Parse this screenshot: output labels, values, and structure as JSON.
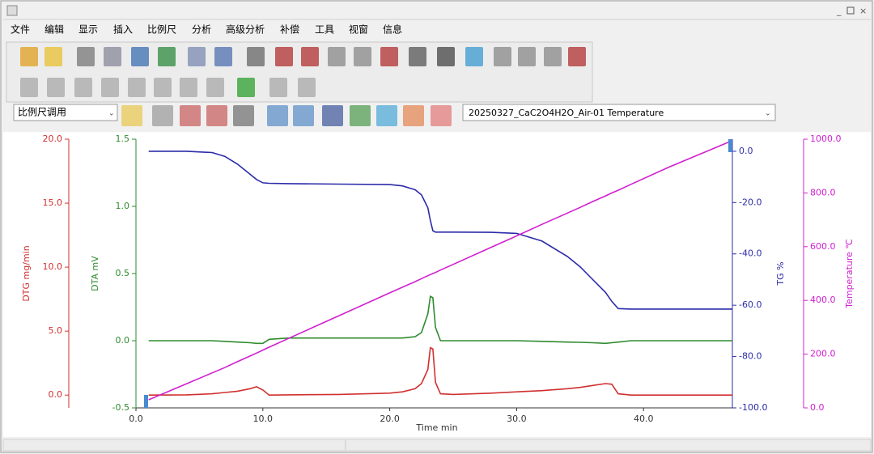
{
  "menu": [
    "文件",
    "编辑",
    "显示",
    "插入",
    "比例尺",
    "分析",
    "高级分析",
    "补偿",
    "工具",
    "视窗",
    "信息"
  ],
  "scale_combo": "比例尺调用",
  "dataset_combo": "20250327_CaC2O4H2O_Air-01   Temperature",
  "chart_data": {
    "type": "line",
    "xlabel": "Time  min",
    "xlim": [
      0,
      47
    ],
    "xticks": [
      {
        "value": 0,
        "label": "0.0"
      },
      {
        "value": 10,
        "label": "10.0"
      },
      {
        "value": 20,
        "label": "20.0"
      },
      {
        "value": 30,
        "label": "30.0"
      },
      {
        "value": 40,
        "label": "40.0"
      }
    ],
    "x": [
      1,
      4,
      6,
      7,
      8,
      9,
      9.5,
      10,
      10.5,
      12,
      16,
      20,
      21,
      22,
      22.5,
      23,
      23.2,
      23.4,
      23.6,
      24,
      25,
      28,
      30,
      32,
      34,
      35,
      36,
      37,
      37.5,
      38,
      39,
      42,
      47
    ],
    "y_axes": [
      {
        "label": "DTG  mg/min",
        "color": "#d03030",
        "ylim": [
          -1,
          20
        ],
        "yticks": [
          {
            "value": 0,
            "label": "0.0"
          },
          {
            "value": 5,
            "label": "5.0"
          },
          {
            "value": 10,
            "label": "10.0"
          },
          {
            "value": 15,
            "label": "15.0"
          },
          {
            "value": 20,
            "label": "20.0"
          }
        ]
      },
      {
        "label": "DTA  mV",
        "color": "#2e8b2e",
        "ylim": [
          -0.5,
          1.5
        ],
        "yticks": [
          {
            "value": -0.5,
            "label": "-0.5"
          },
          {
            "value": 0,
            "label": "0.0"
          },
          {
            "value": 0.5,
            "label": "0.5"
          },
          {
            "value": 1,
            "label": "1.0"
          },
          {
            "value": 1.5,
            "label": "1.5"
          }
        ]
      },
      {
        "label": "TG  %",
        "color": "#2b2ba8",
        "ylim": [
          -100,
          4.7
        ],
        "yticks": [
          {
            "value": 0,
            "label": "0.0"
          },
          {
            "value": -20,
            "label": "-20.0"
          },
          {
            "value": -40,
            "label": "-40.0"
          },
          {
            "value": -60,
            "label": "-60.0"
          },
          {
            "value": -80,
            "label": "-80.0"
          },
          {
            "value": -100,
            "label": "-100.0"
          }
        ]
      },
      {
        "label": "Temperature  ℃",
        "color": "#d020d0",
        "ylim": [
          0,
          1000
        ],
        "yticks": [
          {
            "value": 0,
            "label": "0.0"
          },
          {
            "value": 200,
            "label": "200.0"
          },
          {
            "value": 400,
            "label": "400.0"
          },
          {
            "value": 600,
            "label": "600.0"
          },
          {
            "value": 800,
            "label": "800.0"
          },
          {
            "value": 1000,
            "label": "1000.0"
          }
        ]
      }
    ],
    "series": [
      {
        "axis": 0,
        "color": "#d03030",
        "values": [
          0,
          0.02,
          0.1,
          0.2,
          0.3,
          0.5,
          0.65,
          0.4,
          0,
          0.02,
          0.05,
          0.15,
          0.25,
          0.5,
          0.9,
          2.0,
          3.7,
          3.6,
          1.0,
          0.1,
          0.05,
          0.15,
          0.25,
          0.35,
          0.5,
          0.6,
          0.75,
          0.9,
          0.85,
          0.1,
          0,
          0,
          0
        ]
      },
      {
        "axis": 1,
        "color": "#2e8b2e",
        "values": [
          0,
          0,
          0,
          -0.005,
          -0.01,
          -0.015,
          -0.02,
          -0.02,
          0.01,
          0.02,
          0.02,
          0.02,
          0.02,
          0.03,
          0.06,
          0.2,
          0.33,
          0.32,
          0.1,
          0,
          0,
          0,
          0,
          -0.005,
          -0.01,
          -0.012,
          -0.015,
          -0.02,
          -0.015,
          -0.01,
          0,
          0,
          0
        ]
      },
      {
        "axis": 2,
        "color": "#2b2ba8",
        "values": [
          0,
          0,
          -0.5,
          -2,
          -5,
          -9,
          -11,
          -12.3,
          -12.5,
          -12.6,
          -12.8,
          -13,
          -13.5,
          -15,
          -17,
          -22,
          -27,
          -31,
          -31.5,
          -31.5,
          -31.5,
          -31.6,
          -32,
          -35,
          -41,
          -45,
          -50,
          -55,
          -58.5,
          -61.3,
          -61.5,
          -61.5,
          -61.5
        ]
      },
      {
        "axis": 3,
        "color": "#d020d0",
        "values": [
          30,
          90,
          130,
          150,
          172,
          193,
          204,
          215,
          226,
          258,
          343,
          428,
          449,
          470,
          481,
          492,
          496,
          500,
          504,
          513,
          534,
          598,
          640,
          683,
          725,
          746,
          768,
          789,
          800,
          810,
          832,
          896,
          995
        ]
      }
    ]
  }
}
